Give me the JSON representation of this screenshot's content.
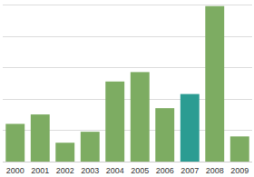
{
  "chart_data": {
    "type": "bar",
    "categories": [
      "2000",
      "2001",
      "2002",
      "2003",
      "2004",
      "2005",
      "2006",
      "2007",
      "2008",
      "2009"
    ],
    "values": [
      1.2,
      1.5,
      0.6,
      0.95,
      2.55,
      2.85,
      1.7,
      2.15,
      4.95,
      0.8
    ],
    "colors": [
      "#7dac62",
      "#7dac62",
      "#7dac62",
      "#7dac62",
      "#7dac62",
      "#7dac62",
      "#7dac62",
      "#2b9c92",
      "#7dac62",
      "#7dac62"
    ],
    "ylim": [
      0,
      5
    ],
    "yticks": [
      0,
      1,
      2,
      3,
      4,
      5
    ],
    "grid": true,
    "tick_labels": "x"
  }
}
